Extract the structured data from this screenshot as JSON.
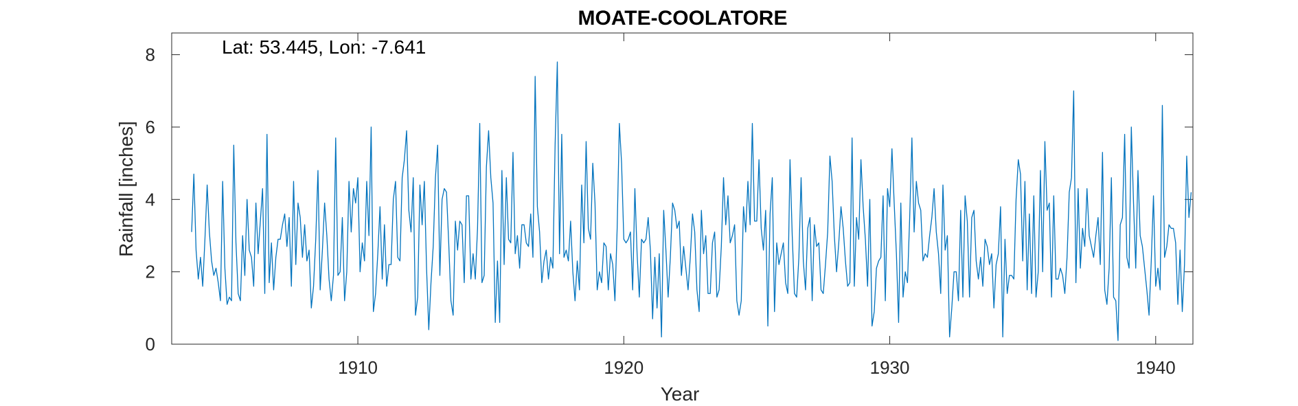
{
  "chart_data": {
    "type": "line",
    "title": "MOATE-COOLATORE",
    "annotation": "Lat: 53.445, Lon: -7.641",
    "xlabel": "Year",
    "ylabel": "Rainfall [inches]",
    "xlim": [
      1903,
      1941.4
    ],
    "ylim": [
      0,
      8.6
    ],
    "xticks": [
      1910,
      1920,
      1930,
      1940
    ],
    "yticks": [
      0,
      2,
      4,
      6,
      8
    ],
    "grid": false,
    "colors": {
      "series": "#0072BD",
      "axes": "#262626"
    },
    "series": [
      {
        "x_start": 1903.75,
        "x_step_months": 1,
        "values": [
          3.1,
          4.7,
          2.6,
          1.8,
          2.4,
          1.6,
          2.9,
          4.4,
          3.1,
          2.3,
          1.9,
          2.1,
          1.7,
          1.2,
          4.5,
          2.1,
          1.1,
          1.3,
          1.2,
          5.5,
          2.8,
          1.4,
          1.2,
          3.0,
          1.9,
          4.0,
          2.6,
          2.4,
          1.6,
          3.9,
          2.5,
          3.4,
          4.3,
          1.4,
          5.8,
          1.7,
          2.8,
          1.5,
          2.4,
          2.9,
          2.9,
          3.3,
          3.6,
          2.7,
          3.5,
          1.6,
          4.5,
          2.2,
          3.9,
          3.5,
          2.4,
          3.3,
          2.3,
          2.6,
          1.0,
          1.6,
          2.9,
          4.8,
          1.5,
          2.6,
          3.9,
          3.0,
          1.8,
          1.2,
          1.9,
          5.7,
          1.9,
          2.0,
          3.5,
          1.2,
          2.0,
          4.5,
          3.1,
          4.3,
          3.9,
          4.6,
          2.0,
          2.8,
          2.3,
          4.5,
          3.0,
          6.0,
          0.9,
          1.4,
          2.5,
          3.8,
          1.8,
          3.3,
          1.6,
          2.2,
          2.2,
          4.0,
          4.5,
          2.4,
          2.3,
          4.6,
          5.1,
          5.9,
          3.7,
          3.1,
          4.6,
          0.8,
          1.3,
          4.4,
          3.3,
          4.5,
          2.1,
          0.4,
          1.7,
          2.7,
          4.6,
          5.5,
          1.9,
          4.0,
          4.3,
          4.2,
          2.8,
          1.2,
          0.8,
          3.4,
          2.6,
          3.4,
          3.3,
          1.7,
          4.1,
          4.1,
          1.8,
          2.5,
          1.8,
          3.2,
          6.1,
          1.7,
          1.9,
          4.9,
          5.9,
          4.6,
          3.9,
          0.6,
          2.3,
          0.6,
          4.8,
          2.2,
          4.6,
          2.9,
          2.8,
          5.3,
          2.5,
          3.0,
          2.1,
          3.3,
          3.3,
          2.8,
          2.7,
          3.6,
          2.4,
          7.4,
          3.8,
          3.1,
          1.7,
          2.3,
          2.6,
          1.8,
          2.4,
          2.1,
          5.5,
          7.8,
          2.5,
          5.8,
          2.4,
          2.6,
          2.3,
          3.4,
          2.0,
          1.2,
          2.3,
          1.5,
          4.4,
          2.8,
          5.6,
          3.2,
          2.9,
          5.0,
          3.9,
          1.5,
          2.0,
          1.7,
          2.8,
          2.7,
          1.5,
          2.5,
          2.2,
          1.2,
          3.2,
          6.1,
          5.0,
          2.9,
          2.8,
          2.9,
          3.1,
          1.5,
          4.3,
          2.5,
          1.3,
          2.9,
          2.8,
          2.9,
          3.5,
          2.6,
          0.7,
          2.4,
          1.0,
          2.5,
          0.2,
          3.7,
          2.6,
          1.3,
          2.4,
          3.9,
          3.7,
          3.2,
          3.4,
          1.9,
          2.7,
          2.1,
          1.5,
          2.4,
          3.6,
          3.1,
          1.5,
          0.9,
          3.7,
          2.5,
          3.0,
          1.4,
          1.4,
          2.8,
          3.1,
          1.3,
          1.5,
          2.7,
          4.6,
          3.3,
          4.1,
          2.8,
          3.0,
          3.3,
          1.2,
          0.8,
          1.2,
          3.8,
          3.1,
          4.5,
          3.3,
          6.1,
          3.4,
          3.4,
          5.1,
          3.2,
          2.6,
          3.7,
          0.5,
          3.6,
          4.6,
          0.9,
          2.8,
          2.2,
          2.5,
          2.8,
          1.7,
          1.4,
          5.1,
          3.0,
          1.4,
          1.3,
          2.4,
          4.6,
          2.3,
          1.5,
          3.2,
          3.5,
          1.2,
          3.3,
          2.7,
          2.8,
          1.5,
          1.4,
          2.2,
          3.1,
          5.2,
          4.5,
          3.0,
          2.0,
          2.8,
          3.8,
          3.2,
          2.3,
          1.6,
          1.7,
          5.7,
          1.6,
          3.5,
          2.9,
          5.1,
          3.8,
          2.9,
          1.6,
          4.0,
          0.5,
          0.9,
          2.1,
          2.3,
          2.4,
          4.1,
          1.2,
          4.3,
          3.8,
          5.4,
          3.9,
          2.5,
          0.6,
          3.9,
          1.3,
          2.0,
          1.7,
          3.5,
          5.7,
          3.1,
          4.5,
          3.9,
          3.7,
          2.3,
          2.5,
          2.4,
          3.0,
          3.5,
          4.3,
          3.1,
          2.5,
          1.4,
          4.4,
          2.6,
          3.0,
          0.2,
          1.0,
          2.0,
          2.0,
          1.2,
          3.7,
          1.3,
          4.1,
          3.4,
          1.3,
          3.5,
          3.7,
          2.3,
          1.8,
          2.4,
          1.6,
          2.9,
          2.7,
          2.2,
          2.5,
          1.0,
          2.2,
          2.5,
          3.8,
          0.2,
          2.9,
          1.4,
          1.9,
          1.9,
          1.8,
          4.0,
          5.1,
          4.7,
          2.3,
          4.5,
          1.5,
          3.6,
          1.4,
          4.1,
          1.3,
          2.0,
          4.8,
          2.0,
          5.6,
          3.7,
          3.9,
          1.3,
          4.1,
          1.8,
          1.8,
          2.1,
          1.9,
          1.4,
          2.4,
          4.2,
          4.6,
          7.0,
          1.7,
          4.3,
          2.1,
          3.2,
          2.7,
          4.3,
          3.0,
          2.7,
          2.4,
          3.0,
          3.5,
          2.2,
          5.3,
          1.5,
          1.1,
          2.1,
          4.6,
          1.3,
          1.2,
          0.1,
          3.3,
          3.5,
          5.8,
          2.4,
          2.1,
          6.0,
          3.9,
          2.1,
          4.8,
          3.0,
          2.7,
          2.1,
          1.5,
          0.8,
          2.3,
          4.1,
          1.6,
          2.1,
          1.5,
          6.6,
          2.4,
          2.7,
          3.3,
          3.2,
          3.2,
          2.8,
          1.1,
          2.6,
          0.9,
          2.2,
          5.2,
          3.5,
          4.2
        ]
      }
    ]
  }
}
